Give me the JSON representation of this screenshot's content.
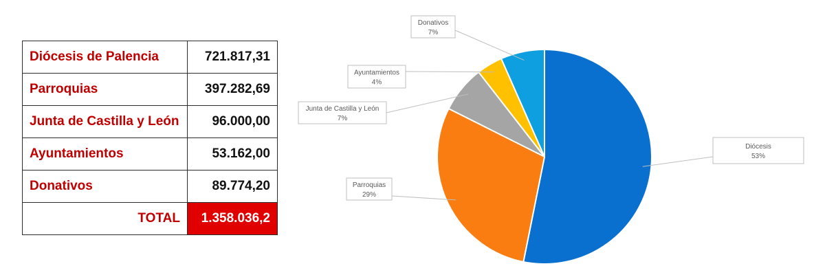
{
  "table": {
    "rows": [
      {
        "label": "Diócesis de Palencia",
        "value": "721.817,31"
      },
      {
        "label": "Parroquias",
        "value": "397.282,69"
      },
      {
        "label": "Junta de Castilla y León",
        "value": "96.000,00"
      },
      {
        "label": "Ayuntamientos",
        "value": "53.162,00"
      },
      {
        "label": "Donativos",
        "value": "89.774,20"
      }
    ],
    "total_label": "TOTAL",
    "total_value": "1.358.036,2"
  },
  "chart_data": {
    "type": "pie",
    "start_angle_deg": 0,
    "direction": "clockwise",
    "slices": [
      {
        "label": "Diócesis",
        "percent_label": "53%",
        "value": 721817.31,
        "color": "#0a70d0"
      },
      {
        "label": "Parroquias",
        "percent_label": "29%",
        "value": 397282.69,
        "color": "#fa7d12"
      },
      {
        "label": "Junta de Castilla y León",
        "percent_label": "7%",
        "value": 96000.0,
        "color": "#a5a5a5"
      },
      {
        "label": "Ayuntamientos",
        "percent_label": "4%",
        "value": 53162.0,
        "color": "#ffc000"
      },
      {
        "label": "Donativos",
        "percent_label": "7%",
        "value": 89774.2,
        "color": "#0d9fdf"
      }
    ]
  }
}
